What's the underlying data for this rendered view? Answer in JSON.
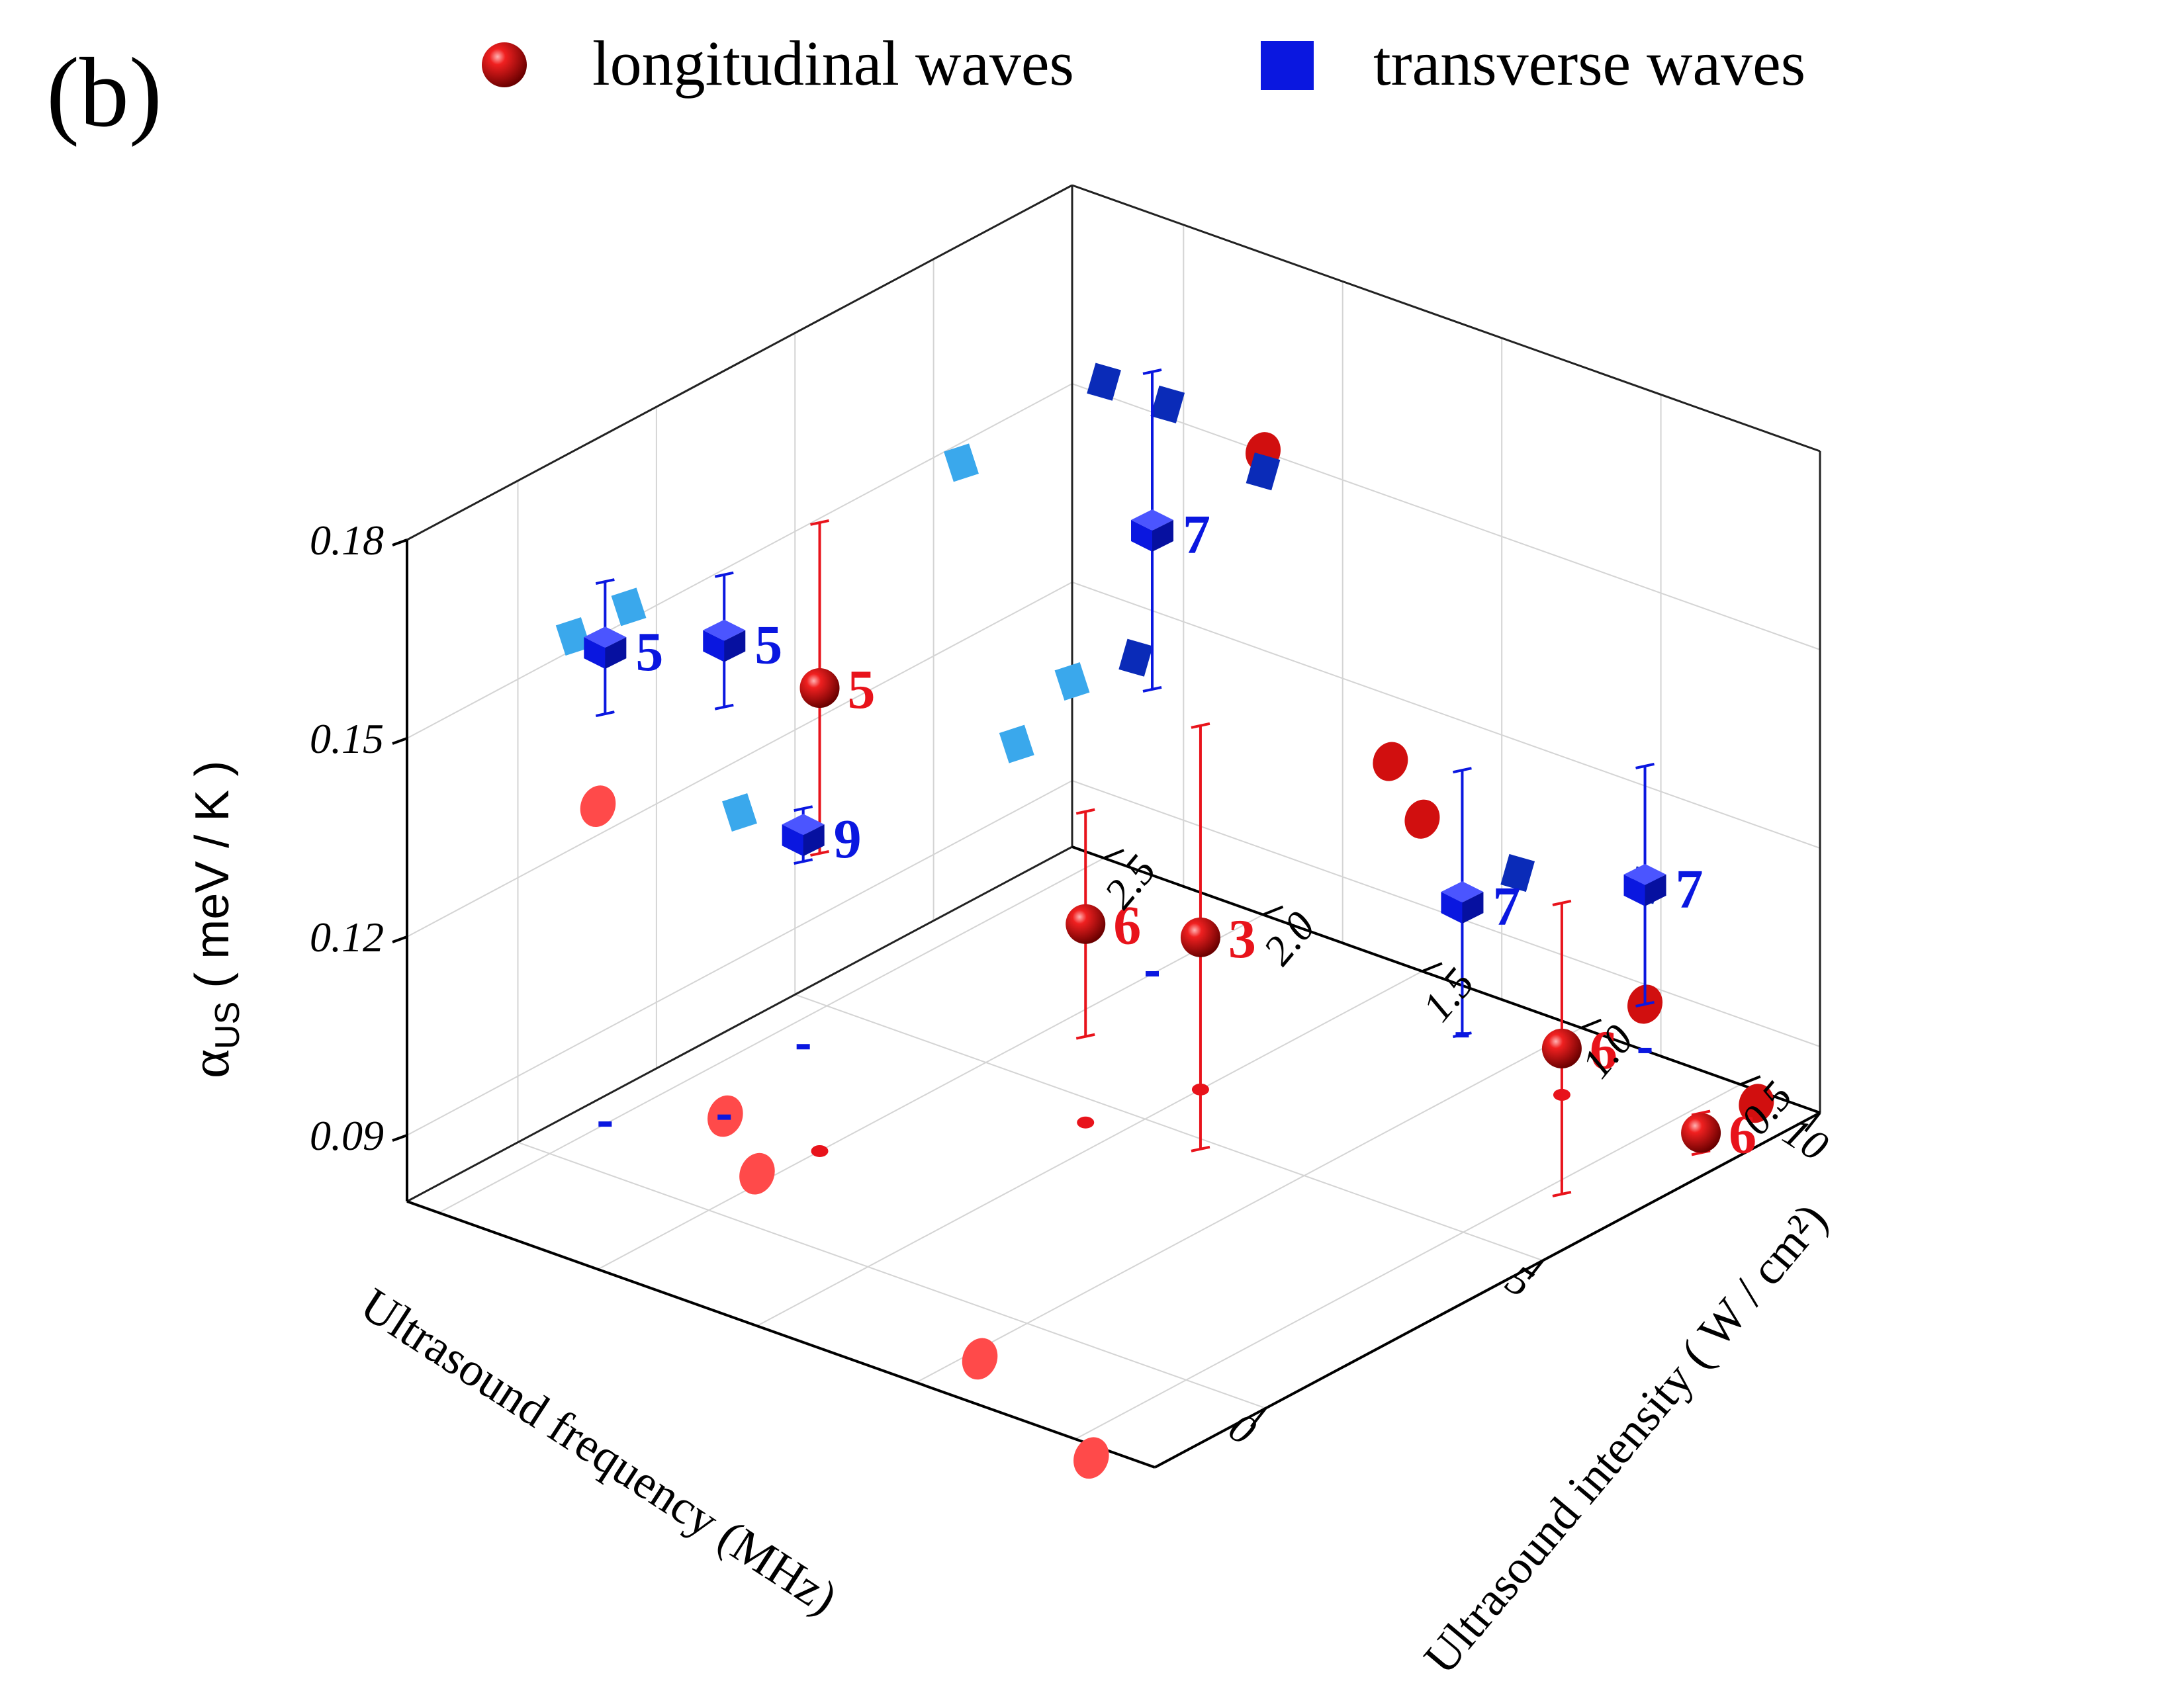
{
  "panel_label": "(b)",
  "legend": {
    "longitudinal": "longitudinal waves",
    "transverse": "transverse waves"
  },
  "axes": {
    "x_title": "Ultrasound frequency (MHz)",
    "y_title": "Ultrasound intensity ( W / cm²)",
    "z_title_main": "α",
    "z_title_sub": "US",
    "z_title_rest": " ( meV / K )",
    "x_ticks": [
      "0",
      "5",
      "10"
    ],
    "y_ticks": [
      "0.5",
      "1.0",
      "1.5",
      "2.0",
      "2.5"
    ],
    "z_ticks": [
      "0.09",
      "0.12",
      "0.15",
      "0.18"
    ]
  },
  "colors": {
    "longitudinal": "#e8131b",
    "transverse": "#0a17e0",
    "long_shadow": "#ff4a4a",
    "trans_shadow_x": "#3aa8ec",
    "trans_shadow_y": "#0a2bb8"
  },
  "chart_data": {
    "type": "scatter",
    "title": "",
    "xlabel": "Ultrasound frequency (MHz)",
    "ylabel": "Ultrasound intensity ( W / cm²)",
    "zlabel": "αUS ( meV / K )",
    "xlim": [
      -2,
      10
    ],
    "ylim": [
      0.25,
      2.6
    ],
    "zlim": [
      0.08,
      0.18
    ],
    "grid": true,
    "legend_position": "top",
    "series": [
      {
        "name": "longitudinal waves",
        "marker": "sphere",
        "points": [
          {
            "x": 2.0,
            "y": 2.0,
            "z": 0.15,
            "err": 0.025,
            "label": "5"
          },
          {
            "x": 4.5,
            "y": 1.6,
            "z": 0.11,
            "err": 0.017,
            "label": "6"
          },
          {
            "x": 6.0,
            "y": 1.5,
            "z": 0.103,
            "err": 0.032,
            "label": "3"
          },
          {
            "x": 8.5,
            "y": 0.8,
            "z": 0.087,
            "err": 0.022,
            "label": "6"
          },
          {
            "x": 9.0,
            "y": 0.45,
            "z": 0.078,
            "err": 0.003,
            "label": "6"
          }
        ]
      },
      {
        "name": "transverse waves",
        "marker": "cube",
        "points": [
          {
            "x": 1.0,
            "y": 2.5,
            "z": 0.152,
            "err": 0.01,
            "label": "5"
          },
          {
            "x": 2.0,
            "y": 2.3,
            "z": 0.152,
            "err": 0.01,
            "label": "5"
          },
          {
            "x": 8.0,
            "y": 2.0,
            "z": 0.147,
            "err": 0.024,
            "label": "7"
          },
          {
            "x": 4.0,
            "y": 2.4,
            "z": 0.112,
            "err": 0.004,
            "label": "9"
          },
          {
            "x": 9.0,
            "y": 1.2,
            "z": 0.1,
            "err": 0.02,
            "label": "7"
          },
          {
            "x": 10.0,
            "y": 0.8,
            "z": 0.105,
            "err": 0.018,
            "label": "7"
          }
        ]
      }
    ]
  }
}
